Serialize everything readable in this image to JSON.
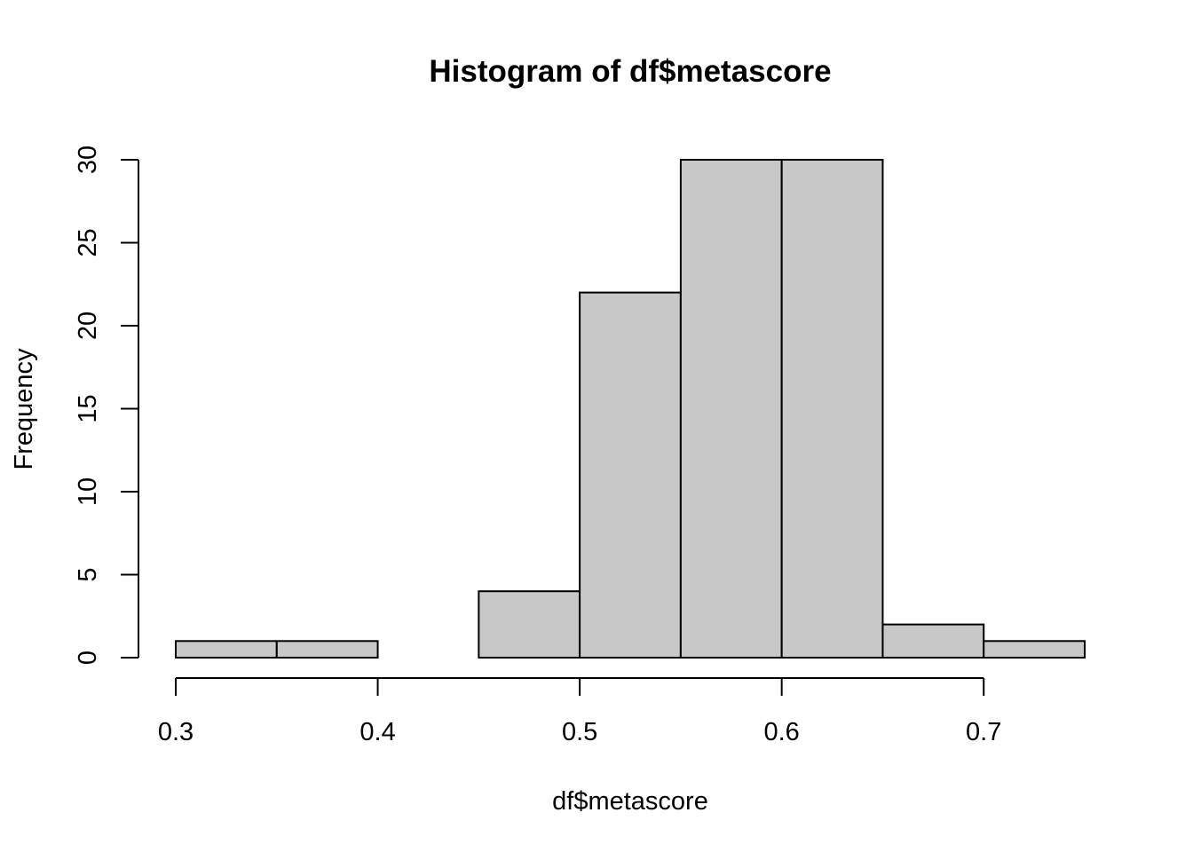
{
  "chart_data": {
    "type": "bar",
    "subtype": "histogram",
    "title": "Histogram of df$metascore",
    "xlabel": "df$metascore",
    "ylabel": "Frequency",
    "bins": [
      {
        "start": 0.3,
        "end": 0.35,
        "count": 1
      },
      {
        "start": 0.35,
        "end": 0.4,
        "count": 1
      },
      {
        "start": 0.4,
        "end": 0.45,
        "count": 0
      },
      {
        "start": 0.45,
        "end": 0.5,
        "count": 4
      },
      {
        "start": 0.5,
        "end": 0.55,
        "count": 22
      },
      {
        "start": 0.55,
        "end": 0.6,
        "count": 30
      },
      {
        "start": 0.6,
        "end": 0.65,
        "count": 30
      },
      {
        "start": 0.65,
        "end": 0.7,
        "count": 2
      },
      {
        "start": 0.7,
        "end": 0.75,
        "count": 1
      }
    ],
    "x_ticks": [
      "0.3",
      "0.4",
      "0.5",
      "0.6",
      "0.7"
    ],
    "y_ticks": [
      "0",
      "5",
      "10",
      "15",
      "20",
      "25",
      "30"
    ],
    "xlim": [
      0.3,
      0.75
    ],
    "ylim": [
      0,
      30
    ],
    "grid": false,
    "legend": false,
    "bar_fill": "#c8c8c8",
    "bar_stroke": "#000000"
  }
}
